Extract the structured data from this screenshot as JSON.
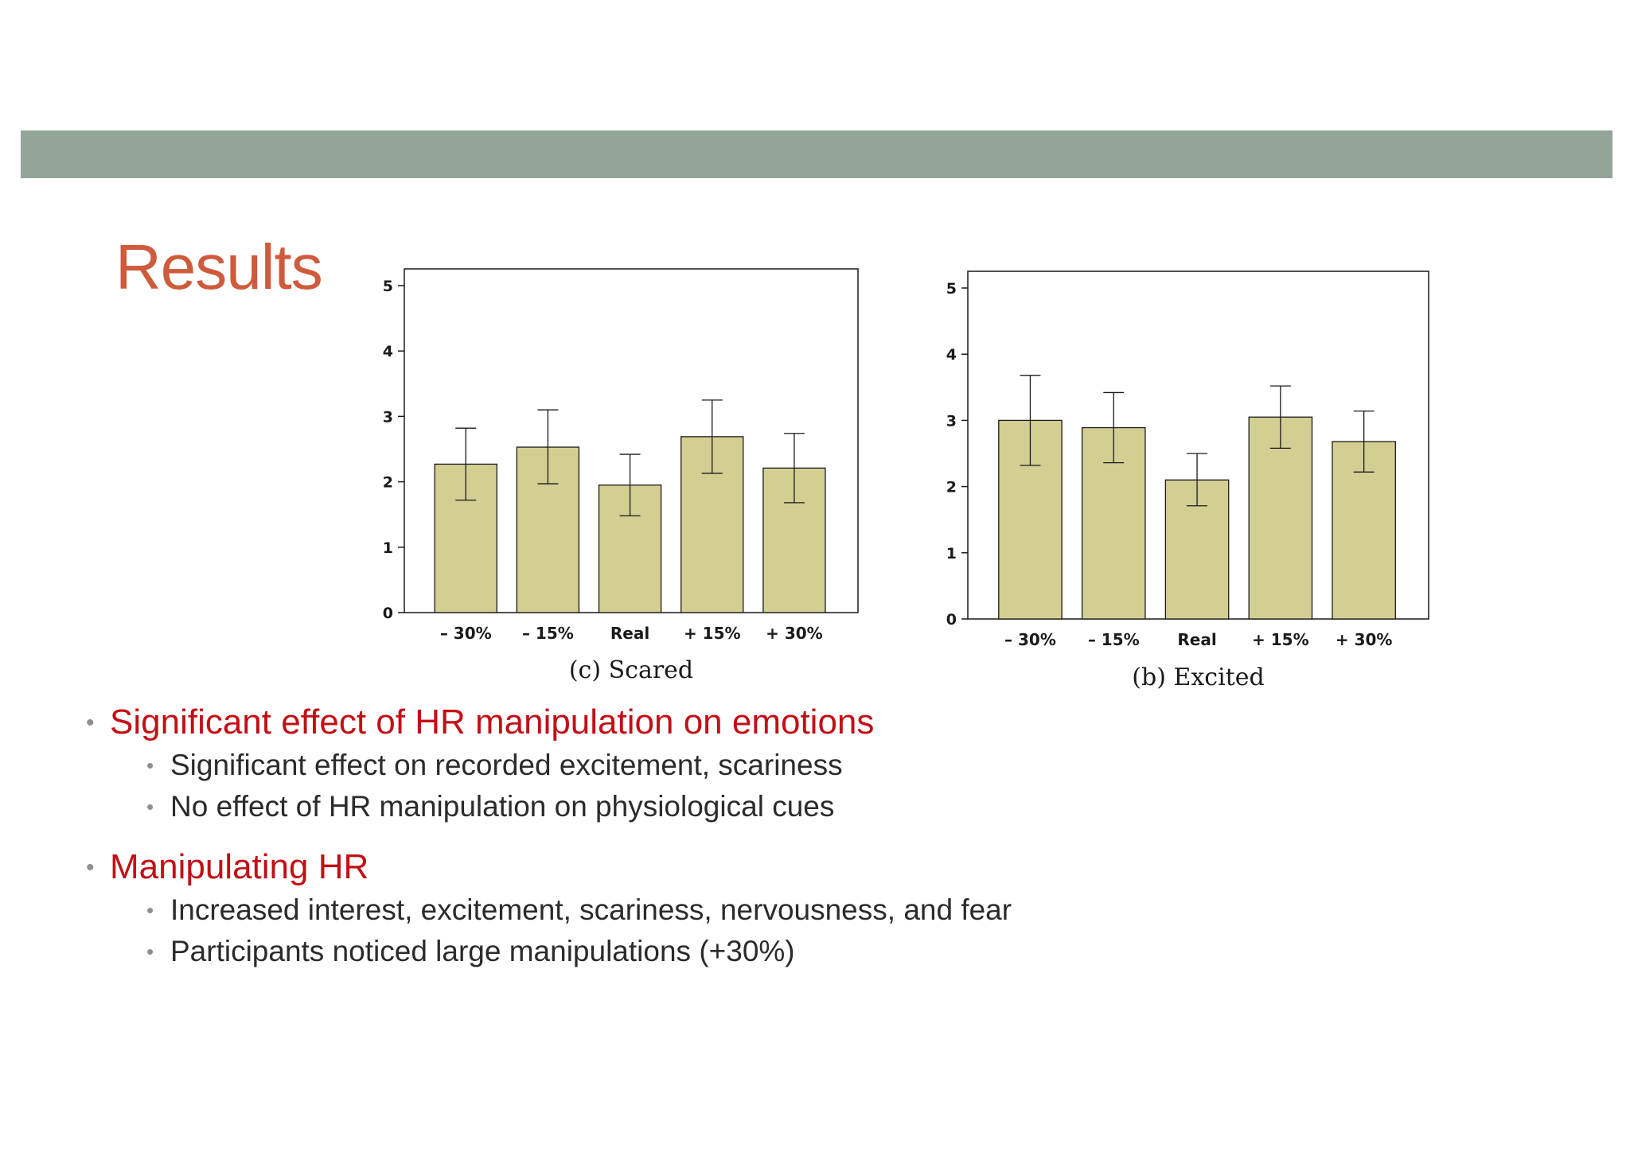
{
  "slide": {
    "title": "Results",
    "colors": {
      "band": "#94a498",
      "title": "#cf5a3c",
      "bullet_title": "#c20f17",
      "text": "#2b2b2b"
    },
    "bullets": [
      {
        "label": "Significant effect of HR manipulation on emotions",
        "sub": [
          "Significant effect on recorded excitement, scariness",
          "No effect of HR manipulation on physiological cues"
        ]
      },
      {
        "label": "Manipulating HR",
        "sub": [
          "Increased interest, excitement, scariness, nervousness, and fear",
          "Participants noticed large manipulations (+30%)"
        ]
      }
    ]
  },
  "chart_data": [
    {
      "type": "bar",
      "caption": "(c) Scared",
      "categories": [
        "– 30%",
        "– 15%",
        "Real",
        "+ 15%",
        "+ 30%"
      ],
      "values": [
        2.27,
        2.53,
        1.95,
        2.69,
        2.21
      ],
      "error_low": [
        1.72,
        1.97,
        1.48,
        2.13,
        1.68
      ],
      "error_high": [
        2.82,
        3.1,
        2.42,
        3.25,
        2.74
      ],
      "ylim": [
        0,
        5.3
      ],
      "yticks": [
        0,
        1,
        2,
        3,
        4,
        5
      ],
      "grid": false,
      "bar_color": "#d3cf93"
    },
    {
      "type": "bar",
      "caption": "(b) Excited",
      "categories": [
        "– 30%",
        "– 15%",
        "Real",
        "+ 15%",
        "+ 30%"
      ],
      "values": [
        3.0,
        2.89,
        2.1,
        3.05,
        2.68
      ],
      "error_low": [
        2.32,
        2.36,
        1.71,
        2.58,
        2.22
      ],
      "error_high": [
        3.68,
        3.42,
        2.5,
        3.52,
        3.14
      ],
      "ylim": [
        0,
        5.3
      ],
      "yticks": [
        0,
        1,
        2,
        3,
        4,
        5
      ],
      "grid": false,
      "bar_color": "#d3cf93"
    }
  ]
}
